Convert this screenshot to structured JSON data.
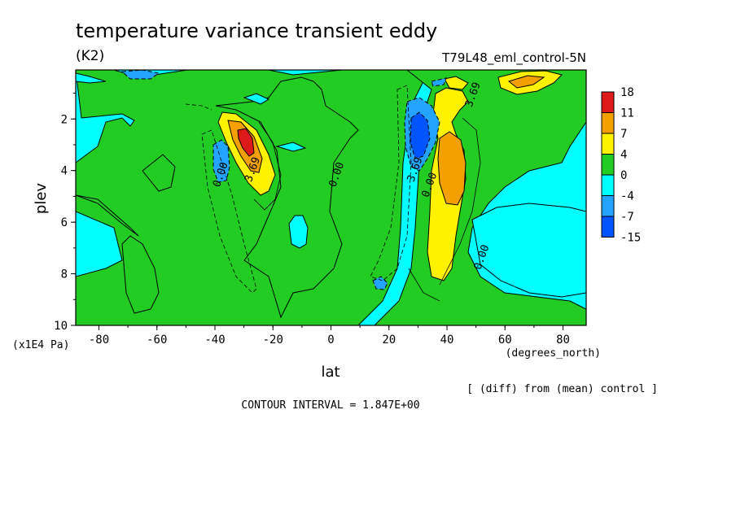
{
  "chart_data": {
    "type": "heatmap",
    "title": "temperature variance transient eddy",
    "units": "(K2)",
    "subtitle_right": "T79L48_eml_control-5N",
    "xlabel": "lat",
    "x_units": "(degrees_north)",
    "ylabel": "plev",
    "y_units": "(x1E4 Pa)",
    "xlim": [
      -88,
      88
    ],
    "ylim": [
      10,
      0.1
    ],
    "x_ticks": [
      "-80",
      "-60",
      "-40",
      "-20",
      "0",
      "20",
      "40",
      "60",
      "80"
    ],
    "x_tick_values": [
      -80,
      -60,
      -40,
      -20,
      0,
      20,
      40,
      60,
      80
    ],
    "y_ticks": [
      "2",
      "4",
      "6",
      "8",
      "10"
    ],
    "y_tick_values": [
      2,
      4,
      6,
      8,
      10
    ],
    "note": "[ (diff) from (mean) control ]",
    "contour_interval": "CONTOUR INTERVAL = 1.847E+00",
    "contour_labels": [
      {
        "text": "3.69",
        "lat": -26,
        "plev": 4.0
      },
      {
        "text": "0.00",
        "lat": -37,
        "plev": 4.2
      },
      {
        "text": "0.00",
        "lat": 3,
        "plev": 4.2
      },
      {
        "text": "3.69",
        "lat": 30,
        "plev": 4.0
      },
      {
        "text": "0.00",
        "lat": 35,
        "plev": 4.6
      },
      {
        "text": "3.69",
        "lat": 50,
        "plev": 1.1
      },
      {
        "text": "0.00",
        "lat": 53,
        "plev": 7.4
      }
    ],
    "colorbar": {
      "labels": [
        "18",
        "11",
        "7",
        "4",
        "0",
        "-4",
        "-7",
        "-15"
      ],
      "colors": [
        "#dd1a1a",
        "#f4a000",
        "#fff200",
        "#22cc22",
        "#00ffff",
        "#22a4ff",
        "#0055ff"
      ]
    },
    "features": [
      {
        "name": "SH positive maximum",
        "lat": -30,
        "plev": 2.7,
        "value": 16
      },
      {
        "name": "NH positive maximum",
        "lat": 42,
        "plev": 3.1,
        "value": 10
      },
      {
        "name": "NH negative minimum",
        "lat": 30,
        "plev": 3.0,
        "value": -9
      },
      {
        "name": "SH negative minimum",
        "lat": -40,
        "plev": 3.8,
        "value": -6
      }
    ]
  }
}
